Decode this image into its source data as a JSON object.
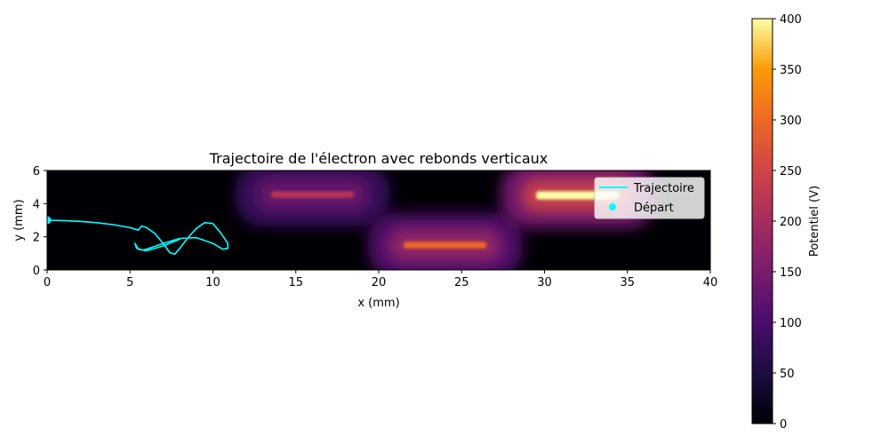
{
  "chart_data": {
    "type": "heatmap",
    "title": "Trajectoire de l'électron avec rebonds verticaux",
    "xlabel": "x (mm)",
    "ylabel": "y (mm)",
    "xlim": [
      0,
      40
    ],
    "ylim": [
      0,
      6
    ],
    "xticks": [
      0,
      5,
      10,
      15,
      20,
      25,
      30,
      35,
      40
    ],
    "yticks": [
      0,
      2,
      4,
      6
    ],
    "grid": false,
    "legend_position": "top-right",
    "colormap": "inferno",
    "colorbar": {
      "label": "Potentiel (V)",
      "range": [
        0,
        400
      ],
      "ticks": [
        0,
        50,
        100,
        150,
        200,
        250,
        300,
        350,
        400
      ]
    },
    "electrodes": [
      {
        "x": [
          13.5,
          18.5
        ],
        "y": [
          4.35,
          4.75
        ],
        "potential": 220
      },
      {
        "x": [
          21.5,
          26.5
        ],
        "y": [
          1.3,
          1.7
        ],
        "potential": 300
      },
      {
        "x": [
          29.5,
          34.5
        ],
        "y": [
          4.25,
          4.75
        ],
        "potential": 400
      }
    ],
    "series": [
      {
        "name": "Trajectoire",
        "type": "line",
        "color": "#00ffff",
        "x": [
          0,
          1,
          2,
          3,
          4,
          5,
          5.5,
          5.7,
          6.0,
          6.5,
          7.0,
          7.4,
          7.7,
          8.0,
          8.5,
          9.0,
          9.5,
          10.0,
          10.5,
          10.9,
          10.9,
          10.6,
          10.0,
          9.0,
          8.0,
          7.0,
          6.3,
          5.8,
          5.4,
          5.3,
          5.5,
          6.0,
          7.0,
          8.0
        ],
        "y": [
          3.0,
          2.98,
          2.93,
          2.85,
          2.73,
          2.55,
          2.4,
          2.65,
          2.55,
          2.2,
          1.6,
          1.05,
          0.95,
          1.3,
          1.95,
          2.5,
          2.85,
          2.8,
          2.2,
          1.6,
          1.3,
          1.25,
          1.6,
          1.95,
          1.9,
          1.6,
          1.35,
          1.2,
          1.3,
          1.6,
          1.25,
          1.15,
          1.45,
          1.85
        ]
      },
      {
        "name": "Départ",
        "type": "scatter",
        "color": "#00ffff",
        "x": [
          0
        ],
        "y": [
          3.0
        ]
      }
    ]
  }
}
